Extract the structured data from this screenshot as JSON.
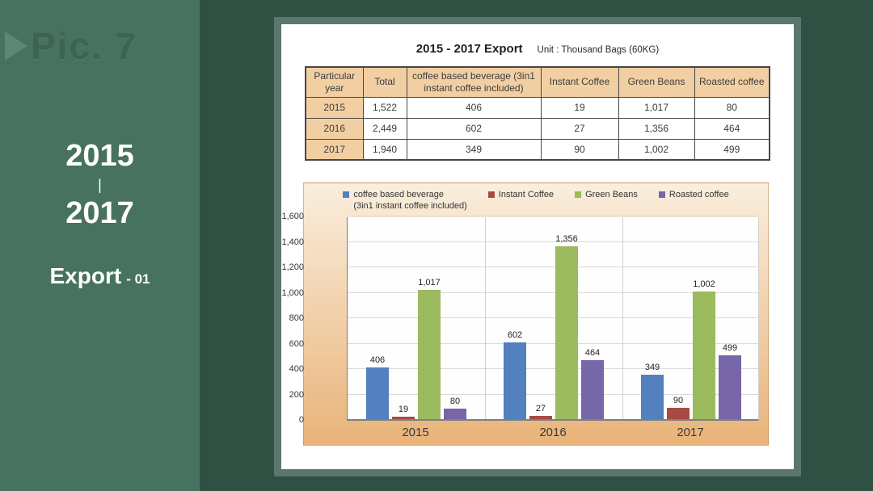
{
  "colors": {
    "page_background": "#2e5143",
    "sidebar_background": "#47725f",
    "card_background": "#ffffff",
    "table_header_background": "#f2cfa3",
    "chart_gradient_top": "#faeedd",
    "chart_gradient_bottom": "#e9b379"
  },
  "sidebar": {
    "watermark": "Pic. 7",
    "range_start": "2015",
    "range_separator": "|",
    "range_end": "2017",
    "export_label": "Export",
    "export_suffix": "- 01"
  },
  "card": {
    "title": "2015 - 2017 Export",
    "unit_label": "Unit : Thousand Bags (60KG)"
  },
  "table": {
    "headers": [
      "Particular year",
      "Total",
      "coffee based beverage (3in1 instant coffee included)",
      "Instant Coffee",
      "Green Beans",
      "Roasted coffee"
    ],
    "rows": [
      [
        "2015",
        "1,522",
        "406",
        "19",
        "1,017",
        "80"
      ],
      [
        "2016",
        "2,449",
        "602",
        "27",
        "1,356",
        "464"
      ],
      [
        "2017",
        "1,940",
        "349",
        "90",
        "1,002",
        "499"
      ]
    ]
  },
  "chart_data": {
    "type": "bar",
    "categories": [
      "2015",
      "2016",
      "2017"
    ],
    "series": [
      {
        "name": "coffee based beverage (3in1 instant coffee included)",
        "legend_label": "coffee based beverage\n(3in1 instant coffee included)",
        "color": "#5380bf",
        "values": [
          406,
          602,
          349
        ]
      },
      {
        "name": "Instant Coffee",
        "legend_label": "Instant Coffee",
        "color": "#a84a42",
        "values": [
          19,
          27,
          90
        ]
      },
      {
        "name": "Green Beans",
        "legend_label": "Green Beans",
        "color": "#9cba5e",
        "values": [
          1017,
          1356,
          1002
        ]
      },
      {
        "name": "Roasted coffee",
        "legend_label": "Roasted coffee",
        "color": "#7766a8",
        "values": [
          80,
          464,
          499
        ]
      }
    ],
    "ylim": [
      0,
      1600
    ],
    "ytick_step": 200,
    "grid": true,
    "legend_position": "top",
    "value_labels": true,
    "xlabel": "",
    "ylabel": ""
  }
}
